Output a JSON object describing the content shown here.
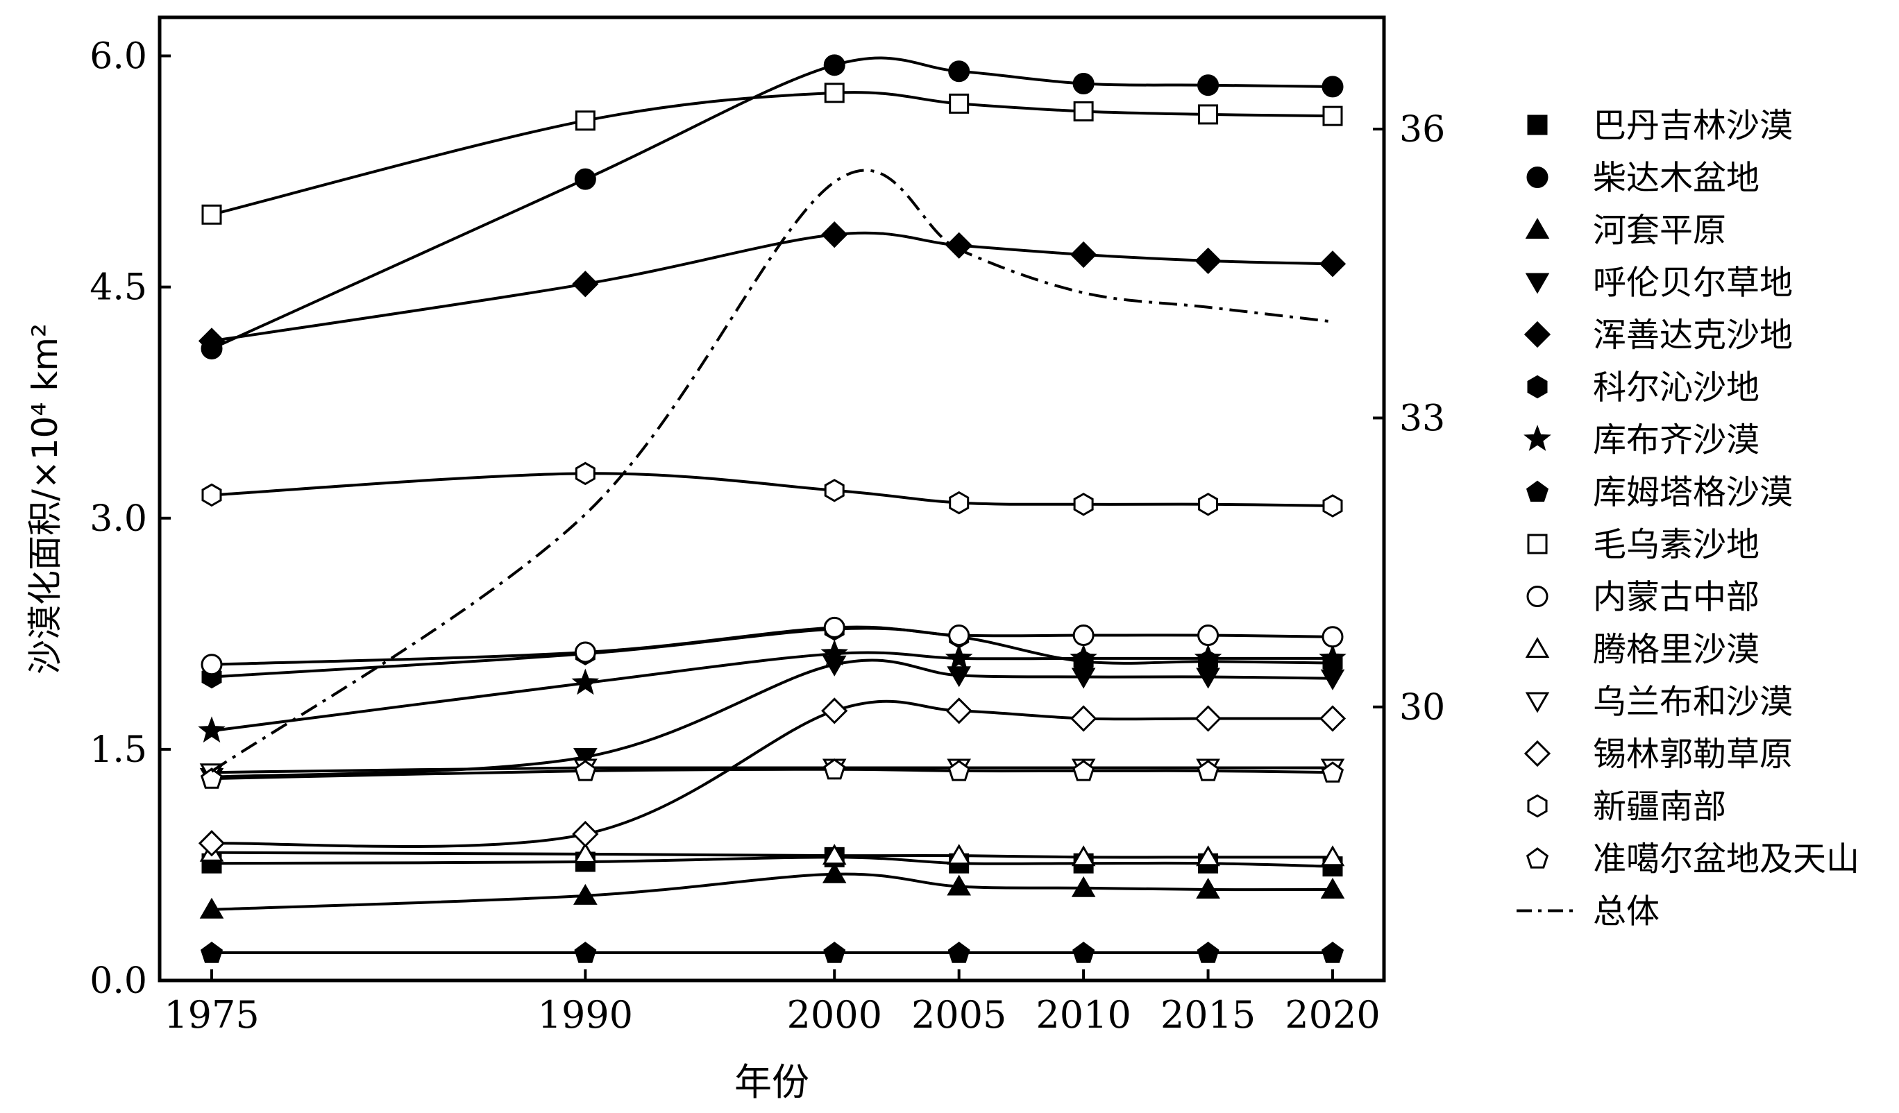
{
  "chart_data": {
    "type": "line",
    "xlabel": "年份",
    "ylabel": "沙漠化面积/×10⁴ km²",
    "x": [
      1975,
      1990,
      2000,
      2005,
      2010,
      2015,
      2020
    ],
    "x_tick_labels": [
      "1975",
      "1990",
      "2000",
      "2005",
      "2010",
      "2015",
      "2020"
    ],
    "ylim": [
      0,
      6.25
    ],
    "y_ticks": [
      0.0,
      1.5,
      3.0,
      4.5,
      6.0
    ],
    "y_tick_labels": [
      "0.0",
      "1.5",
      "3.0",
      "4.5",
      "6.0"
    ],
    "y2lim": [
      27.16,
      37.16
    ],
    "y2_ticks": [
      30,
      33,
      36
    ],
    "y2_tick_labels": [
      "30",
      "33",
      "36"
    ],
    "grid": false,
    "legend_position": "right",
    "series": [
      {
        "name": "巴丹吉林沙漠",
        "marker": "square",
        "fill": "filled",
        "axis": "left",
        "values": [
          0.76,
          0.77,
          0.8,
          0.76,
          0.76,
          0.76,
          0.74
        ]
      },
      {
        "name": "柴达木盆地",
        "marker": "circle",
        "fill": "filled",
        "axis": "left",
        "values": [
          4.1,
          5.2,
          5.94,
          5.9,
          5.82,
          5.81,
          5.8
        ]
      },
      {
        "name": "河套平原",
        "marker": "triangle-up",
        "fill": "filled",
        "axis": "left",
        "values": [
          0.46,
          0.55,
          0.69,
          0.61,
          0.6,
          0.59,
          0.59
        ]
      },
      {
        "name": "呼伦贝尔草地",
        "marker": "triangle-down",
        "fill": "filled",
        "axis": "left",
        "values": [
          1.32,
          1.45,
          2.05,
          1.98,
          1.97,
          1.97,
          1.96
        ]
      },
      {
        "name": "浑善达克沙地",
        "marker": "diamond",
        "fill": "filled",
        "axis": "left",
        "values": [
          4.15,
          4.52,
          4.84,
          4.77,
          4.71,
          4.67,
          4.65
        ]
      },
      {
        "name": "科尔沁沙地",
        "marker": "hexagon",
        "fill": "filled",
        "axis": "left",
        "values": [
          1.97,
          2.12,
          2.28,
          2.23,
          2.07,
          2.07,
          2.06
        ]
      },
      {
        "name": "库布齐沙漠",
        "marker": "star",
        "fill": "filled",
        "axis": "left",
        "values": [
          1.62,
          1.93,
          2.12,
          2.09,
          2.09,
          2.09,
          2.09
        ]
      },
      {
        "name": "库姆塔格沙漠",
        "marker": "pentagon",
        "fill": "filled",
        "axis": "left",
        "values": [
          0.18,
          0.18,
          0.18,
          0.18,
          0.18,
          0.18,
          0.18
        ]
      },
      {
        "name": "毛乌素沙地",
        "marker": "square",
        "fill": "open",
        "axis": "left",
        "values": [
          4.97,
          5.58,
          5.76,
          5.69,
          5.64,
          5.62,
          5.61
        ]
      },
      {
        "name": "内蒙古中部",
        "marker": "circle",
        "fill": "open",
        "axis": "left",
        "values": [
          2.05,
          2.13,
          2.29,
          2.24,
          2.24,
          2.24,
          2.23
        ]
      },
      {
        "name": "腾格里沙漠",
        "marker": "triangle-up",
        "fill": "open",
        "axis": "left",
        "values": [
          0.83,
          0.82,
          0.81,
          0.81,
          0.8,
          0.8,
          0.8
        ]
      },
      {
        "name": "乌兰布和沙漠",
        "marker": "triangle-down",
        "fill": "open",
        "axis": "left",
        "values": [
          1.35,
          1.38,
          1.38,
          1.38,
          1.38,
          1.38,
          1.38
        ]
      },
      {
        "name": "锡林郭勒草原",
        "marker": "diamond",
        "fill": "open",
        "axis": "left",
        "values": [
          0.89,
          0.95,
          1.75,
          1.75,
          1.7,
          1.7,
          1.7
        ]
      },
      {
        "name": "新疆南部",
        "marker": "hexagon",
        "fill": "open",
        "axis": "left",
        "values": [
          3.15,
          3.29,
          3.18,
          3.1,
          3.09,
          3.09,
          3.08
        ]
      },
      {
        "name": "准噶尔盆地及天山",
        "marker": "pentagon",
        "fill": "open",
        "axis": "left",
        "values": [
          1.31,
          1.36,
          1.37,
          1.36,
          1.36,
          1.36,
          1.35
        ]
      },
      {
        "name": "总体",
        "marker": "none",
        "line": "dash-dot",
        "axis": "right",
        "values": [
          29.33,
          32.0,
          35.45,
          34.75,
          34.3,
          34.15,
          34.0
        ]
      }
    ]
  }
}
